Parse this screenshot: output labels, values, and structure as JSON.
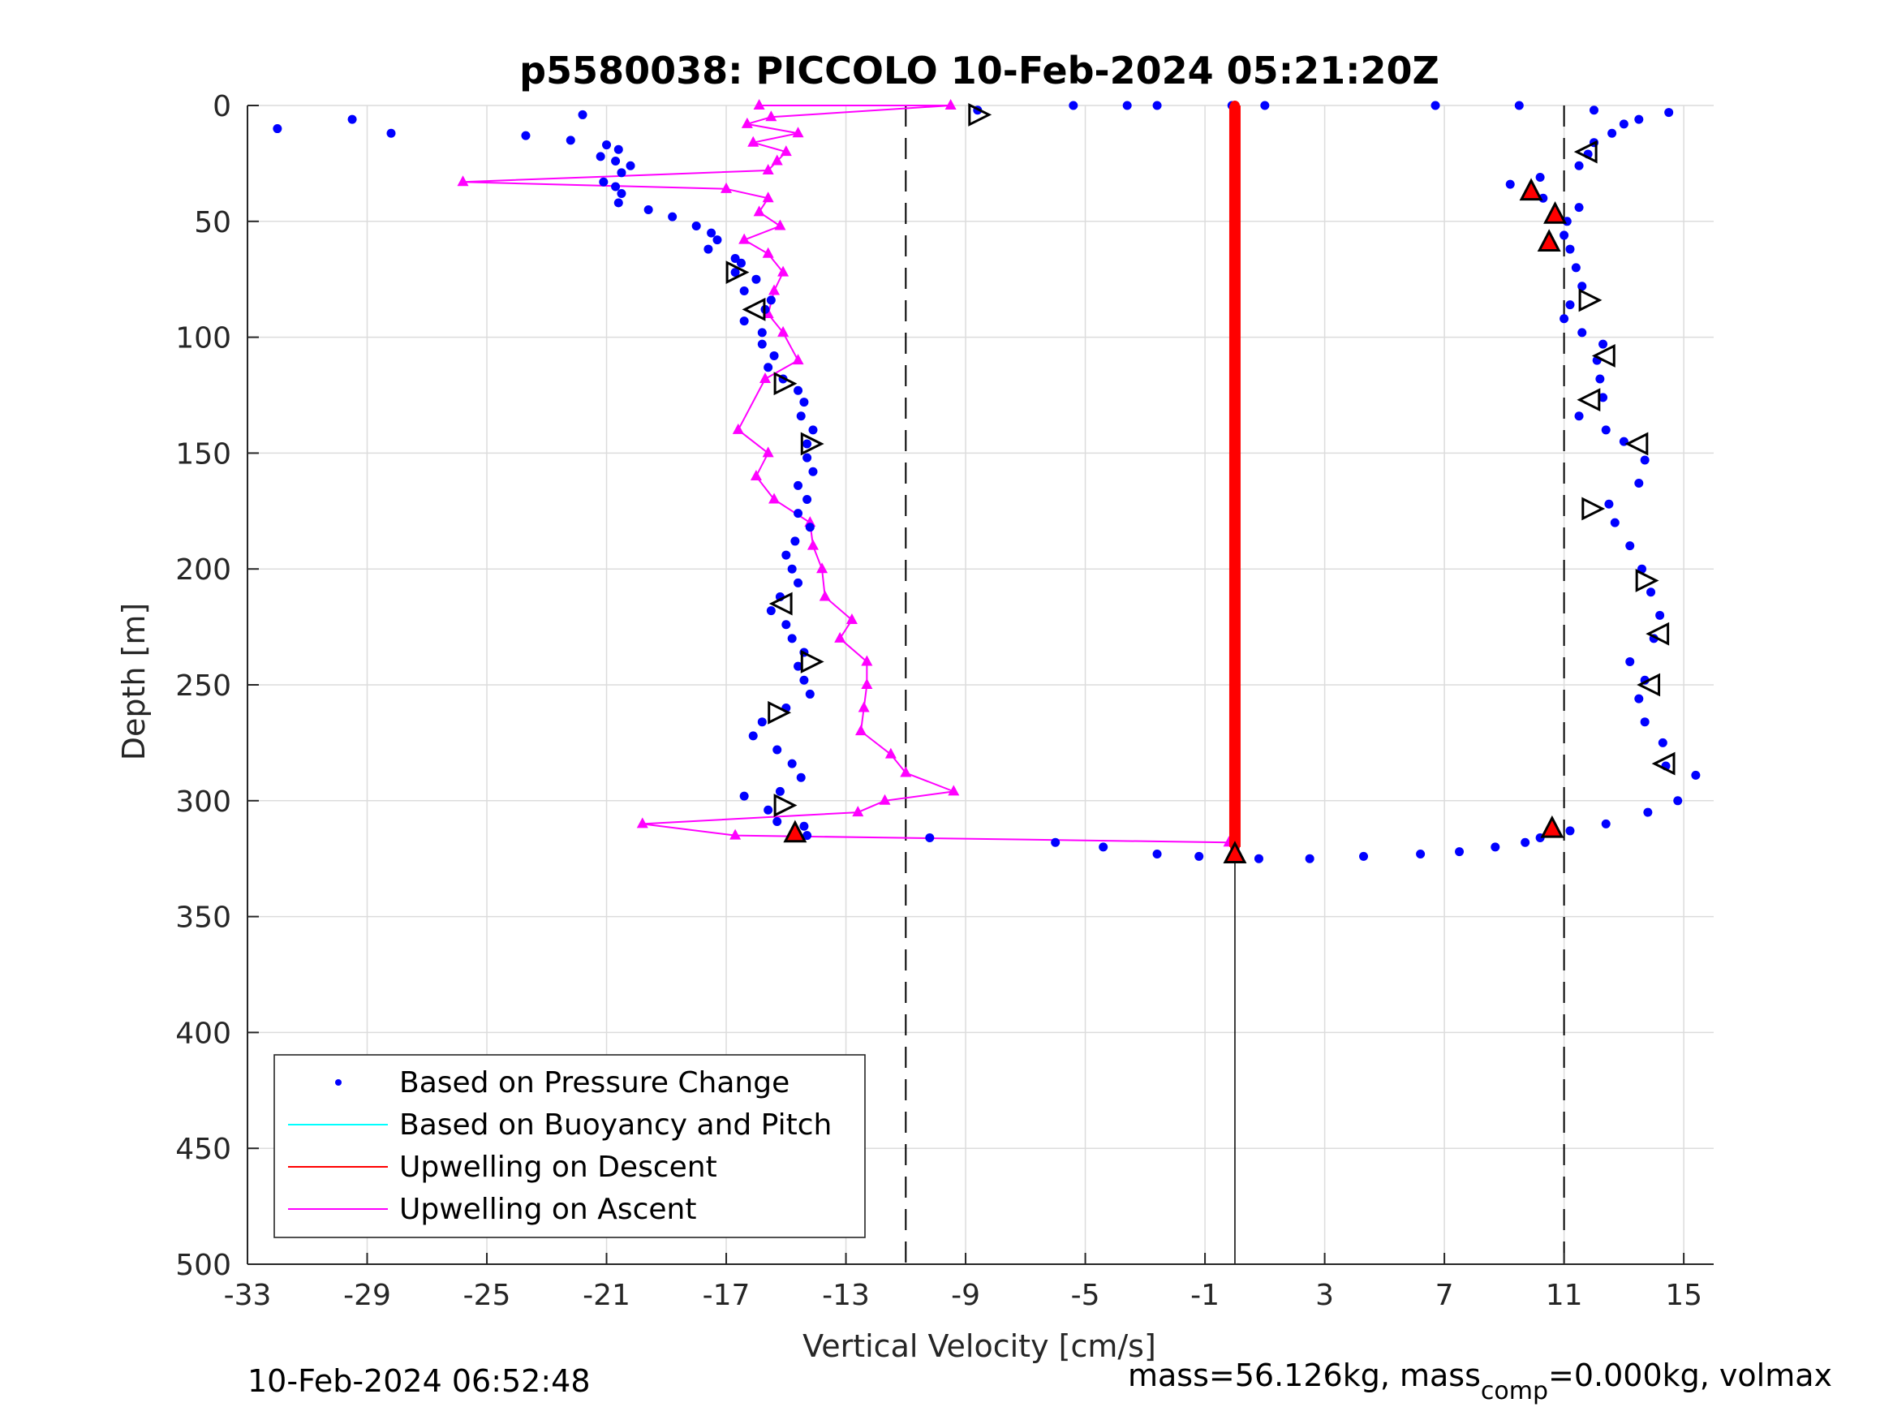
{
  "chart_data": {
    "type": "scatter",
    "title": "p5580038: PICCOLO 10-Feb-2024 05:21:20Z",
    "xlabel": "Vertical Velocity [cm/s]",
    "ylabel": "Depth [m]",
    "xlim": [
      -33,
      16
    ],
    "ylim": [
      0,
      500
    ],
    "y_reversed": true,
    "xticks": [
      "-33",
      "-29",
      "-25",
      "-21",
      "-17",
      "-13",
      "-9",
      "-5",
      "-1",
      "3",
      "7",
      "11",
      "15"
    ],
    "yticks": [
      "0",
      "50",
      "100",
      "150",
      "200",
      "250",
      "300",
      "350",
      "400",
      "450",
      "500"
    ],
    "grid": true,
    "legend_position": "bottom-left",
    "legend": [
      "Based on Pressure Change",
      "Based on Buoyancy and Pitch",
      "Upwelling on Descent",
      "Upwelling on Ascent"
    ],
    "colors": {
      "pressure": "#0000ff",
      "buoyancy": "#00ffff",
      "upwell_descent": "#ff0000",
      "upwell_ascent": "#ff00ff"
    },
    "reference_lines": {
      "dashed_x": [
        -11,
        11
      ],
      "solid_x": 0
    },
    "pressure_points_descent": [
      [
        -32,
        10
      ],
      [
        -29.5,
        6
      ],
      [
        -28.2,
        12
      ],
      [
        -21.8,
        4
      ],
      [
        -23.7,
        13
      ],
      [
        -22.2,
        15
      ],
      [
        -21,
        17
      ],
      [
        -20.6,
        19
      ],
      [
        -21.2,
        22
      ],
      [
        -20.7,
        24
      ],
      [
        -20.2,
        26
      ],
      [
        -20.5,
        29
      ],
      [
        -21.1,
        33
      ],
      [
        -20.7,
        35
      ],
      [
        -20.5,
        38
      ],
      [
        -20.6,
        42
      ],
      [
        -19.6,
        45
      ],
      [
        -18.8,
        48
      ],
      [
        -18,
        52
      ],
      [
        -17.5,
        55
      ],
      [
        -17.3,
        58
      ],
      [
        -17.6,
        62
      ],
      [
        -16.7,
        66
      ],
      [
        -16.5,
        68
      ],
      [
        -16.7,
        72
      ],
      [
        -16,
        75
      ],
      [
        -16.4,
        80
      ],
      [
        -15.5,
        84
      ],
      [
        -15.7,
        88
      ],
      [
        -16.4,
        93
      ],
      [
        -15.8,
        98
      ],
      [
        -15.8,
        103
      ],
      [
        -15.4,
        108
      ],
      [
        -15.6,
        113
      ],
      [
        -15.1,
        118
      ],
      [
        -14.6,
        123
      ],
      [
        -14.4,
        128
      ],
      [
        -14.5,
        134
      ],
      [
        -14.1,
        140
      ],
      [
        -14.3,
        146
      ],
      [
        -14.3,
        152
      ],
      [
        -14.1,
        158
      ],
      [
        -14.6,
        164
      ],
      [
        -14.3,
        170
      ],
      [
        -14.6,
        176
      ],
      [
        -14.2,
        182
      ],
      [
        -14.7,
        188
      ],
      [
        -15,
        194
      ],
      [
        -14.8,
        200
      ],
      [
        -14.6,
        206
      ],
      [
        -15.2,
        212
      ],
      [
        -15.5,
        218
      ],
      [
        -15,
        224
      ],
      [
        -14.8,
        230
      ],
      [
        -14.4,
        236
      ],
      [
        -14.6,
        242
      ],
      [
        -14.4,
        248
      ],
      [
        -14.2,
        254
      ],
      [
        -15,
        260
      ],
      [
        -15.8,
        266
      ],
      [
        -16.1,
        272
      ],
      [
        -15.3,
        278
      ],
      [
        -14.8,
        284
      ],
      [
        -14.5,
        290
      ],
      [
        -15.2,
        296
      ],
      [
        -16.4,
        298
      ],
      [
        -15.6,
        304
      ],
      [
        -15.3,
        309
      ],
      [
        -14.4,
        311
      ],
      [
        -14.3,
        315
      ],
      [
        -10.2,
        316
      ],
      [
        -6,
        318
      ],
      [
        -4.4,
        320
      ],
      [
        -2.6,
        323
      ],
      [
        -1.2,
        324
      ],
      [
        0.8,
        325
      ],
      [
        2.5,
        325
      ],
      [
        4.3,
        324
      ],
      [
        6.2,
        323
      ],
      [
        7.5,
        322
      ],
      [
        8.7,
        320
      ],
      [
        9.7,
        318
      ],
      [
        10.2,
        316
      ],
      [
        11.2,
        313
      ],
      [
        12.4,
        310
      ],
      [
        13.8,
        305
      ],
      [
        14.8,
        300
      ],
      [
        15.4,
        289
      ],
      [
        14.4,
        285
      ],
      [
        14.3,
        275
      ],
      [
        13.7,
        266
      ],
      [
        13.5,
        256
      ],
      [
        13.7,
        248
      ],
      [
        13.2,
        240
      ],
      [
        14,
        230
      ],
      [
        14.2,
        220
      ],
      [
        13.9,
        210
      ],
      [
        13.6,
        200
      ],
      [
        13.2,
        190
      ],
      [
        12.7,
        180
      ],
      [
        12.5,
        172
      ],
      [
        13.5,
        163
      ],
      [
        13.7,
        153
      ],
      [
        13,
        145
      ],
      [
        12.4,
        140
      ],
      [
        11.5,
        134
      ],
      [
        12.3,
        126
      ],
      [
        12.2,
        118
      ],
      [
        12.1,
        110
      ],
      [
        12.3,
        103
      ],
      [
        11.6,
        98
      ],
      [
        11,
        92
      ],
      [
        11.2,
        86
      ],
      [
        11.6,
        78
      ],
      [
        11.4,
        70
      ],
      [
        11.2,
        62
      ],
      [
        11,
        56
      ],
      [
        11.1,
        50
      ],
      [
        11.5,
        44
      ],
      [
        10.3,
        40
      ],
      [
        9.2,
        34
      ],
      [
        10.2,
        31
      ],
      [
        11.5,
        26
      ],
      [
        11.8,
        21
      ],
      [
        12,
        16
      ],
      [
        12.6,
        12
      ],
      [
        13,
        8
      ],
      [
        14.5,
        3
      ],
      [
        13.5,
        6
      ],
      [
        12,
        2
      ],
      [
        9.5,
        0
      ],
      [
        6.7,
        0
      ],
      [
        1,
        0
      ],
      [
        -0.1,
        0
      ],
      [
        -2.6,
        0
      ],
      [
        -3.6,
        0
      ],
      [
        -5.4,
        0
      ],
      [
        -8.6,
        2
      ]
    ],
    "upwelling_ascent": [
      [
        -15.9,
        0
      ],
      [
        -9.5,
        0
      ],
      [
        -15.5,
        5
      ],
      [
        -16.3,
        8
      ],
      [
        -14.6,
        12
      ],
      [
        -16.1,
        16
      ],
      [
        -15,
        20
      ],
      [
        -15.3,
        24
      ],
      [
        -15.6,
        28
      ],
      [
        -25.8,
        33
      ],
      [
        -17,
        36
      ],
      [
        -15.6,
        40
      ],
      [
        -15.9,
        46
      ],
      [
        -15.2,
        52
      ],
      [
        -16.4,
        58
      ],
      [
        -15.6,
        64
      ],
      [
        -15.1,
        72
      ],
      [
        -15.4,
        80
      ],
      [
        -15.6,
        90
      ],
      [
        -15.1,
        98
      ],
      [
        -14.6,
        110
      ],
      [
        -15.7,
        118
      ],
      [
        -16.6,
        140
      ],
      [
        -15.6,
        150
      ],
      [
        -16,
        160
      ],
      [
        -15.4,
        170
      ],
      [
        -14.2,
        180
      ],
      [
        -14.1,
        190
      ],
      [
        -13.8,
        200
      ],
      [
        -13.7,
        212
      ],
      [
        -12.8,
        222
      ],
      [
        -13.2,
        230
      ],
      [
        -12.3,
        240
      ],
      [
        -12.3,
        250
      ],
      [
        -12.4,
        260
      ],
      [
        -12.5,
        270
      ],
      [
        -11.5,
        280
      ],
      [
        -11,
        288
      ],
      [
        -9.4,
        296
      ],
      [
        -11.7,
        300
      ],
      [
        -12.6,
        305
      ],
      [
        -19.8,
        310
      ],
      [
        -16.7,
        315
      ],
      [
        -0.2,
        318
      ]
    ],
    "upwelling_descent": [
      [
        0,
        0
      ],
      [
        0,
        50
      ],
      [
        0,
        100
      ],
      [
        0,
        150
      ],
      [
        0,
        200
      ],
      [
        0,
        250
      ],
      [
        0,
        300
      ],
      [
        0,
        320
      ]
    ],
    "buoyancy_velocity": [],
    "triangle_markers_open": [
      [
        -8.6,
        4
      ],
      [
        11.8,
        20
      ],
      [
        -16.7,
        72
      ],
      [
        -16,
        88
      ],
      [
        11.8,
        84
      ],
      [
        12.4,
        108
      ],
      [
        -15.1,
        120
      ],
      [
        11.9,
        127
      ],
      [
        -14.2,
        146
      ],
      [
        13.5,
        146
      ],
      [
        11.9,
        174
      ],
      [
        -15.1,
        215
      ],
      [
        13.7,
        205
      ],
      [
        14.2,
        228
      ],
      [
        -14.2,
        240
      ],
      [
        13.9,
        250
      ],
      [
        -15.3,
        262
      ],
      [
        14.4,
        284
      ],
      [
        -15.1,
        302
      ]
    ],
    "triangle_markers_red": [
      [
        9.9,
        37
      ],
      [
        10.7,
        47
      ],
      [
        10.5,
        59
      ],
      [
        10.6,
        312
      ],
      [
        -14.7,
        314
      ],
      [
        0,
        323
      ]
    ]
  },
  "footer": {
    "timestamp": "10-Feb-2024 06:52:48",
    "mass_text_part1": "mass=56.126kg, mass",
    "mass_subscript": "comp",
    "mass_text_part2": "=0.000kg, volmax"
  }
}
